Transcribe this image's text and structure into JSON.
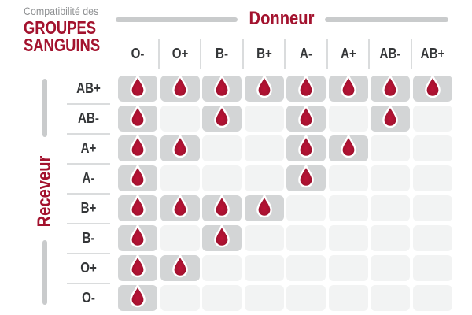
{
  "title": {
    "eyebrow": "Compatibilité des",
    "line1": "GROUPES",
    "line2": "SANGUINS"
  },
  "axes": {
    "donor_label": "Donneur",
    "receiver_label": "Receveur"
  },
  "chart_data": {
    "type": "heatmap",
    "title": "Compatibilité des GROUPES SANGUINS",
    "x_axis_label": "Donneur",
    "y_axis_label": "Receveur",
    "x_categories": [
      "O-",
      "O+",
      "B-",
      "B+",
      "A-",
      "A+",
      "AB-",
      "AB+"
    ],
    "y_categories": [
      "AB+",
      "AB-",
      "A+",
      "A-",
      "B+",
      "B-",
      "O+",
      "O-"
    ],
    "values": [
      [
        1,
        1,
        1,
        1,
        1,
        1,
        1,
        1
      ],
      [
        1,
        0,
        1,
        0,
        1,
        0,
        1,
        0
      ],
      [
        1,
        1,
        0,
        0,
        1,
        1,
        0,
        0
      ],
      [
        1,
        0,
        0,
        0,
        1,
        0,
        0,
        0
      ],
      [
        1,
        1,
        1,
        1,
        0,
        0,
        0,
        0
      ],
      [
        1,
        0,
        1,
        0,
        0,
        0,
        0,
        0
      ],
      [
        1,
        1,
        0,
        0,
        0,
        0,
        0,
        0
      ],
      [
        1,
        0,
        0,
        0,
        0,
        0,
        0,
        0
      ]
    ],
    "cell_marker": "blood-drop-icon",
    "value_meaning": "1 = compatible (blood drop shown), 0 = not compatible (empty cell)",
    "grid": false,
    "legend_position": "none"
  },
  "colors": {
    "accent_red": "#a3122e",
    "drop_red_inner": "#bb1336",
    "drop_red_outer": "#94102a",
    "label_dark": "#343638",
    "muted_gray": "#8f9193",
    "cell_filled": "#d3d5d6",
    "cell_empty": "#f2f3f3",
    "axis_line_gray": "#c9cbcc",
    "divider_gray": "#dadcdd"
  }
}
